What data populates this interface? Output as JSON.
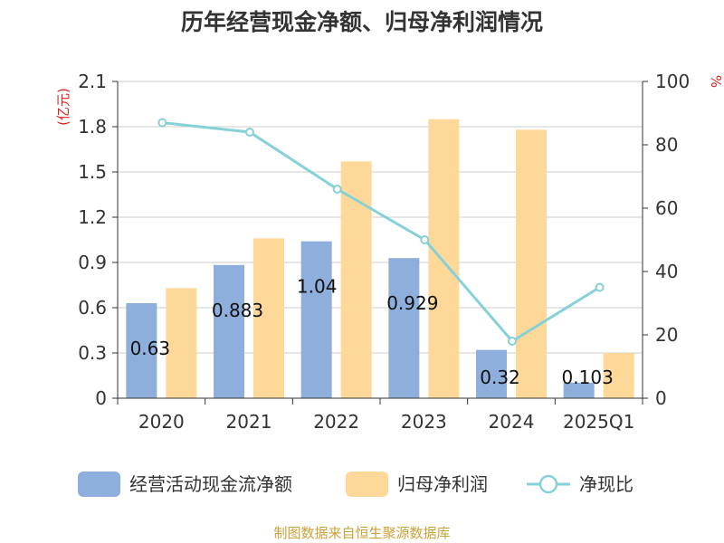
{
  "chart_data": {
    "type": "bar",
    "title": "历年经营现金净额、归母净利润情况",
    "categories": [
      "2020",
      "2021",
      "2022",
      "2023",
      "2024",
      "2025Q1"
    ],
    "y_left": {
      "unit": "(亿元)",
      "range": [
        0,
        2.1
      ],
      "ticks": [
        "0",
        "0.3",
        "0.6",
        "0.9",
        "1.2",
        "1.5",
        "1.8",
        "2.1"
      ]
    },
    "y_right": {
      "unit": "%",
      "range": [
        0,
        100
      ],
      "ticks": [
        "0",
        "20",
        "40",
        "60",
        "80",
        "100"
      ]
    },
    "grid": true,
    "legend_placement": "bottom",
    "series": [
      {
        "name": "经营活动现金流净额",
        "type": "bar",
        "axis": "left",
        "color": "#8eafdb",
        "values": [
          0.63,
          0.883,
          1.04,
          0.929,
          0.32,
          0.103
        ],
        "data_labels": [
          "0.63",
          "0.883",
          "1.04",
          "0.929",
          "0.32",
          "0.103"
        ]
      },
      {
        "name": "归母净利润",
        "type": "bar",
        "axis": "left",
        "color": "#fdd899",
        "values": [
          0.73,
          1.06,
          1.57,
          1.85,
          1.78,
          0.3
        ]
      },
      {
        "name": "净现比",
        "type": "line",
        "axis": "right",
        "color": "#86d1d8",
        "values": [
          87,
          84,
          66,
          50,
          18,
          35
        ]
      }
    ],
    "source": "制图数据来自恒生聚源数据库"
  }
}
